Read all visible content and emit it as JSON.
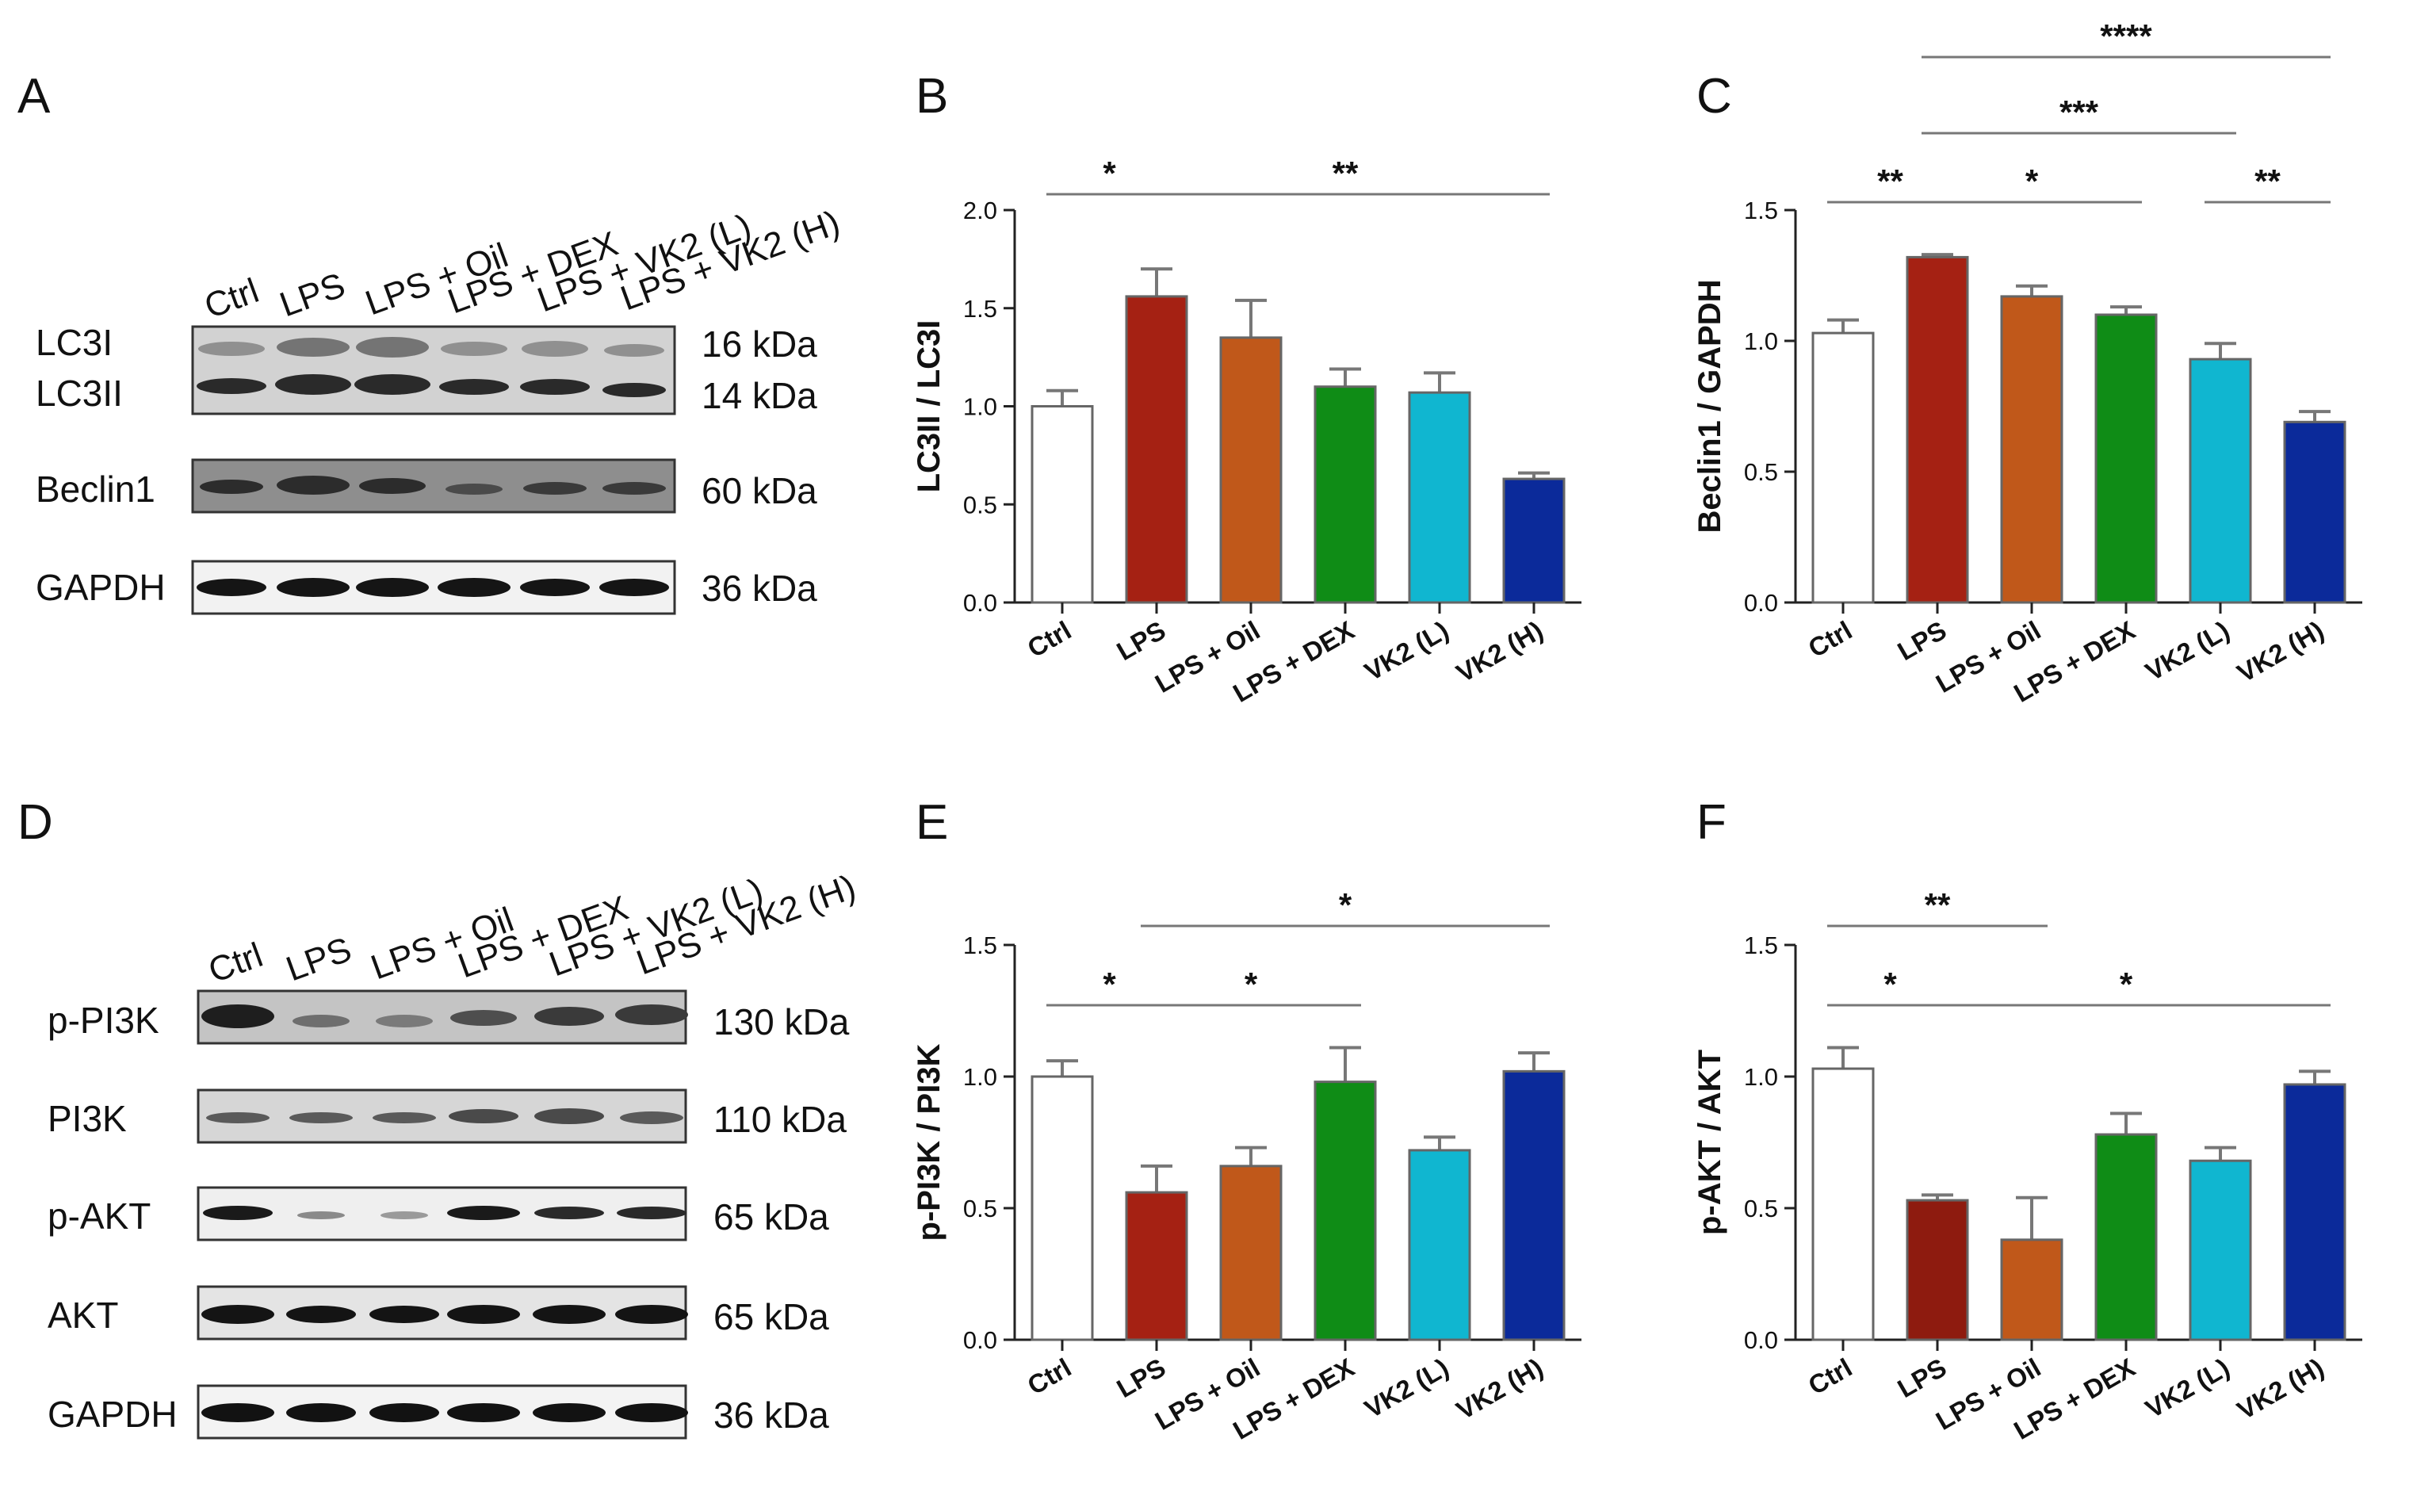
{
  "panels": {
    "A": {
      "letter": "A",
      "lanes": [
        "Ctrl",
        "LPS",
        "LPS + Oil",
        "LPS + DEX",
        "LPS + VK2 (L)",
        "LPS + VK2 (H)"
      ],
      "blots": [
        {
          "labels": [
            "LC3I",
            "LC3II"
          ],
          "kda": [
            "16 kDa",
            "14 kDa"
          ]
        },
        {
          "labels": [
            "Beclin1"
          ],
          "kda": [
            "60 kDa"
          ]
        },
        {
          "labels": [
            "GAPDH"
          ],
          "kda": [
            "36 kDa"
          ]
        }
      ]
    },
    "D": {
      "letter": "D",
      "lanes": [
        "Ctrl",
        "LPS",
        "LPS + Oil",
        "LPS + DEX",
        "LPS + VK2 (L)",
        "LPS + VK2 (H)"
      ],
      "blots": [
        {
          "labels": [
            "p-PI3K"
          ],
          "kda": [
            "130 kDa"
          ]
        },
        {
          "labels": [
            "PI3K"
          ],
          "kda": [
            "110 kDa"
          ]
        },
        {
          "labels": [
            "p-AKT"
          ],
          "kda": [
            "65 kDa"
          ]
        },
        {
          "labels": [
            "AKT"
          ],
          "kda": [
            "65 kDa"
          ]
        },
        {
          "labels": [
            "GAPDH"
          ],
          "kda": [
            "36 kDa"
          ]
        }
      ]
    }
  },
  "colors": {
    "ctrl": "#ffffff",
    "lps": "#a52113",
    "lps_oil": "#c0581a",
    "lps_dex": "#0f8c16",
    "vk2_l": "#10b6d0",
    "vk2_h": "#0b2a9a",
    "lps_dark": "#8e1b0f"
  },
  "chart_data": [
    {
      "panel": "B",
      "type": "bar",
      "categories": [
        "Ctrl",
        "LPS",
        "LPS + Oil",
        "LPS + DEX",
        "VK2 (L)",
        "VK2 (H)"
      ],
      "values": [
        1.0,
        1.56,
        1.35,
        1.1,
        1.07,
        0.63
      ],
      "errors": [
        0.08,
        0.14,
        0.19,
        0.09,
        0.1,
        0.03
      ],
      "bar_colors": [
        "#ffffff",
        "#a52113",
        "#c0581a",
        "#0f8c16",
        "#10b6d0",
        "#0b2a9a"
      ],
      "ylabel": "LC3II / LC3I",
      "ylim": [
        0,
        2.0
      ],
      "yticks": [
        "0.0",
        "0.5",
        "1.0",
        "1.5",
        "2.0"
      ],
      "ytick_values": [
        0,
        0.5,
        1.0,
        1.5,
        2.0
      ],
      "significance": [
        {
          "from": 0,
          "to": 1,
          "label": "*",
          "level": 1
        },
        {
          "from": 1,
          "to": 5,
          "label": "**",
          "level": 1
        }
      ]
    },
    {
      "panel": "C",
      "type": "bar",
      "categories": [
        "Ctrl",
        "LPS",
        "LPS + Oil",
        "LPS + DEX",
        "VK2 (L)",
        "VK2 (H)"
      ],
      "values": [
        1.03,
        1.32,
        1.17,
        1.1,
        0.93,
        0.69
      ],
      "errors": [
        0.05,
        0.01,
        0.04,
        0.03,
        0.06,
        0.04
      ],
      "bar_colors": [
        "#ffffff",
        "#a52113",
        "#c0581a",
        "#0f8c16",
        "#10b6d0",
        "#0b2a9a"
      ],
      "ylabel": "Beclin1 / GAPDH",
      "ylim": [
        0,
        1.5
      ],
      "yticks": [
        "0.0",
        "0.5",
        "1.0",
        "1.5"
      ],
      "ytick_values": [
        0,
        0.5,
        1.0,
        1.5
      ],
      "significance": [
        {
          "from": 0,
          "to": 1,
          "label": "**",
          "level": 1
        },
        {
          "from": 1,
          "to": 3,
          "label": "*",
          "level": 1
        },
        {
          "from": 4,
          "to": 5,
          "label": "**",
          "level": 1
        },
        {
          "from": 1,
          "to": 4,
          "label": "***",
          "level": 2
        },
        {
          "from": 1,
          "to": 5,
          "label": "****",
          "level": 3
        }
      ]
    },
    {
      "panel": "E",
      "type": "bar",
      "categories": [
        "Ctrl",
        "LPS",
        "LPS + Oil",
        "LPS + DEX",
        "VK2 (L)",
        "VK2 (H)"
      ],
      "values": [
        1.0,
        0.56,
        0.66,
        0.98,
        0.72,
        1.02
      ],
      "errors": [
        0.06,
        0.1,
        0.07,
        0.13,
        0.05,
        0.07
      ],
      "bar_colors": [
        "#ffffff",
        "#a52113",
        "#c0581a",
        "#0f8c16",
        "#10b6d0",
        "#0b2a9a"
      ],
      "ylabel": "p-PI3K / PI3K",
      "ylim": [
        0,
        1.5
      ],
      "yticks": [
        "0.0",
        "0.5",
        "1.0",
        "1.5"
      ],
      "ytick_values": [
        0,
        0.5,
        1.0,
        1.5
      ],
      "significance": [
        {
          "from": 0,
          "to": 1,
          "label": "*",
          "level": 1
        },
        {
          "from": 1,
          "to": 3,
          "label": "*",
          "level": 1
        },
        {
          "from": 1,
          "to": 5,
          "label": "*",
          "level": 2
        }
      ]
    },
    {
      "panel": "F",
      "type": "bar",
      "categories": [
        "Ctrl",
        "LPS",
        "LPS + Oil",
        "LPS + DEX",
        "VK2 (L)",
        "VK2 (H)"
      ],
      "values": [
        1.03,
        0.53,
        0.38,
        0.78,
        0.68,
        0.97
      ],
      "errors": [
        0.08,
        0.02,
        0.16,
        0.08,
        0.05,
        0.05
      ],
      "bar_colors": [
        "#ffffff",
        "#8e1b0f",
        "#c0581a",
        "#0f8c16",
        "#10b6d0",
        "#0b2a9a"
      ],
      "ylabel": "p-AKT / AKT",
      "ylim": [
        0,
        1.5
      ],
      "yticks": [
        "0.0",
        "0.5",
        "1.0",
        "1.5"
      ],
      "ytick_values": [
        0,
        0.5,
        1.0,
        1.5
      ],
      "significance": [
        {
          "from": 0,
          "to": 1,
          "label": "*",
          "level": 1
        },
        {
          "from": 1,
          "to": 5,
          "label": "*",
          "level": 1
        },
        {
          "from": 0,
          "to": 2,
          "label": "**",
          "level": 2
        }
      ]
    }
  ]
}
